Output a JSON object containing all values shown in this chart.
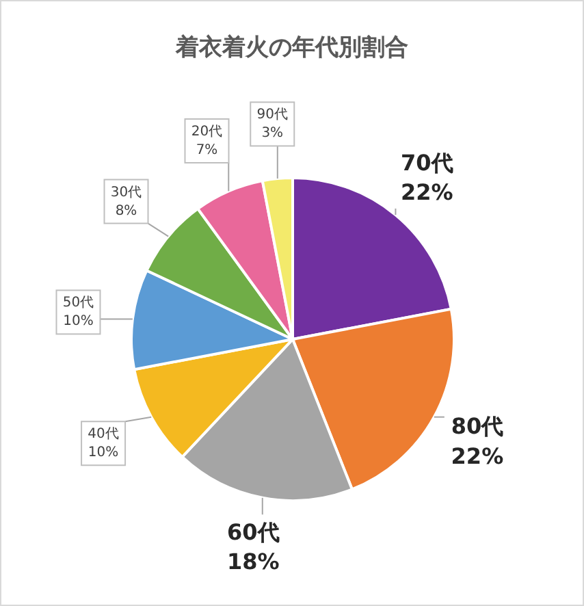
{
  "chart_data": {
    "type": "pie",
    "title": "着衣着火の年代別割合",
    "categories": [
      "70代",
      "80代",
      "60代",
      "40代",
      "50代",
      "30代",
      "20代",
      "90代"
    ],
    "values": [
      22,
      22,
      18,
      10,
      10,
      8,
      7,
      3
    ],
    "colors": [
      "#7030a0",
      "#ed7d31",
      "#a5a5a5",
      "#f4b920",
      "#5b9bd5",
      "#70ad47",
      "#e9689a",
      "#f3ea6b"
    ],
    "value_labels": [
      "22%",
      "22%",
      "18%",
      "10%",
      "10%",
      "8%",
      "7%",
      "3%"
    ]
  }
}
